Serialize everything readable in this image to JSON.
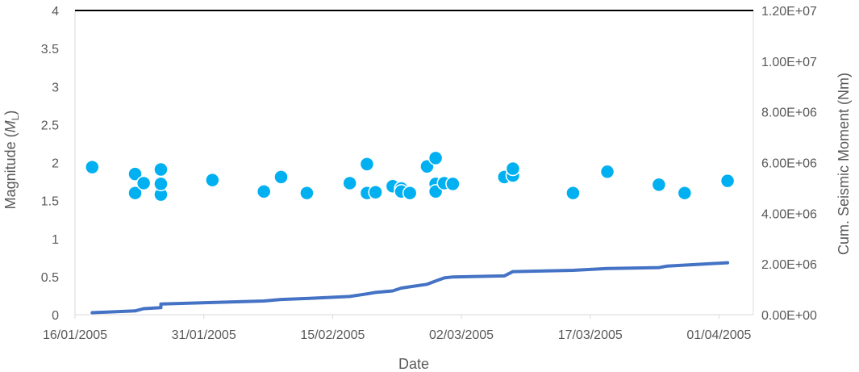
{
  "chart_data": {
    "type": "scatter",
    "title": "",
    "xlabel": "Date",
    "ylabel_left": {
      "text": "Magnitude (",
      "italic": "M",
      "subscript": "L",
      "close": ")"
    },
    "ylabel_right": "Cum. Seismic Moment (Nm)",
    "x_ticks": [
      "16/01/2005",
      "31/01/2005",
      "15/02/2005",
      "02/03/2005",
      "17/03/2005",
      "01/04/2005"
    ],
    "xlim": [
      "2005-01-16",
      "2005-04-05"
    ],
    "y_left_ticks": [
      "0",
      "0.5",
      "1",
      "1.5",
      "2",
      "2.5",
      "3",
      "3.5",
      "4"
    ],
    "ylim_left": [
      0,
      4
    ],
    "y_right_ticks": [
      "0.00E+00",
      "2.00E+06",
      "4.00E+06",
      "6.00E+06",
      "8.00E+06",
      "1.00E+07",
      "1.20E+07"
    ],
    "ylim_right": [
      0,
      12000000
    ],
    "grid": false,
    "colors": {
      "magnitude": "#00b0f0",
      "moment": "#4472c4",
      "axis": "#d9d9d9",
      "top_border": "#000000"
    },
    "series": [
      {
        "kind": "scatter",
        "axis": "left",
        "x": [
          "2005-01-18",
          "2005-01-23",
          "2005-01-23",
          "2005-01-24",
          "2005-01-26",
          "2005-01-26",
          "2005-01-26",
          "2005-02-01",
          "2005-02-07",
          "2005-02-09",
          "2005-02-12",
          "2005-02-17",
          "2005-02-19",
          "2005-02-19",
          "2005-02-20",
          "2005-02-22",
          "2005-02-23",
          "2005-02-23",
          "2005-02-24",
          "2005-02-26",
          "2005-02-27",
          "2005-02-27",
          "2005-02-27",
          "2005-02-28",
          "2005-03-01",
          "2005-03-07",
          "2005-03-08",
          "2005-03-08",
          "2005-03-15",
          "2005-03-19",
          "2005-03-25",
          "2005-03-25",
          "2005-03-28",
          "2005-04-02"
        ],
        "y": [
          1.94,
          1.85,
          1.6,
          1.73,
          1.91,
          1.58,
          1.72,
          1.77,
          1.62,
          1.81,
          1.6,
          1.73,
          1.98,
          1.6,
          1.61,
          1.69,
          1.66,
          1.62,
          1.6,
          1.95,
          2.06,
          1.72,
          1.62,
          1.73,
          1.72,
          1.81,
          1.83,
          1.92,
          1.6,
          1.88,
          1.71,
          1.71,
          1.6,
          1.76
        ]
      },
      {
        "kind": "line",
        "axis": "right",
        "x": [
          "2005-01-18",
          "2005-01-23",
          "2005-01-24",
          "2005-01-26",
          "2005-01-26",
          "2005-02-01",
          "2005-02-07",
          "2005-02-09",
          "2005-02-12",
          "2005-02-17",
          "2005-02-19",
          "2005-02-20",
          "2005-02-22",
          "2005-02-23",
          "2005-02-24",
          "2005-02-26",
          "2005-02-27",
          "2005-02-28",
          "2005-03-01",
          "2005-03-07",
          "2005-03-08",
          "2005-03-15",
          "2005-03-19",
          "2005-03-25",
          "2005-03-26",
          "2005-04-02"
        ],
        "y": [
          80000,
          150000,
          240000,
          280000,
          420000,
          480000,
          540000,
          600000,
          640000,
          720000,
          820000,
          880000,
          940000,
          1050000,
          1100000,
          1200000,
          1330000,
          1450000,
          1490000,
          1530000,
          1700000,
          1750000,
          1820000,
          1860000,
          1920000,
          2050000
        ]
      }
    ]
  }
}
